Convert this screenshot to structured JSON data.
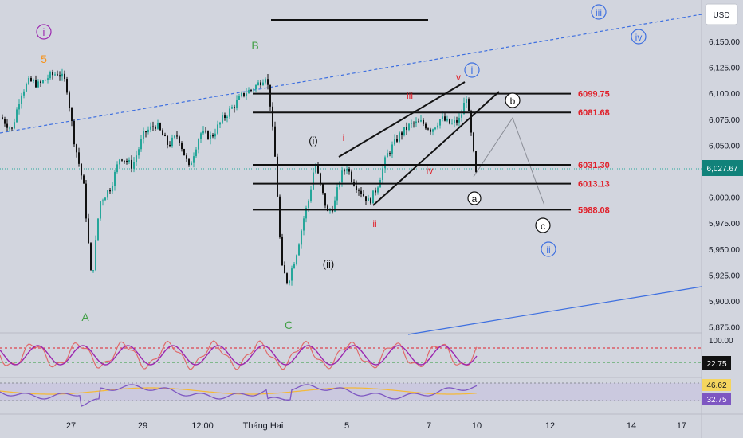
{
  "header": {
    "currency": "USD"
  },
  "price_axis": {
    "ticks": [
      "6,150.00",
      "6,125.00",
      "6,100.00",
      "6,075.00",
      "6,050.00",
      "6,025.00",
      "6,000.00",
      "5,975.00",
      "5,950.00",
      "5,925.00",
      "5,900.00",
      "5,875.00"
    ],
    "current_price": "6,027.67"
  },
  "time_axis": {
    "ticks": [
      "27",
      "29",
      "12:00",
      "Tháng Hai",
      "5",
      "7",
      "10",
      "12",
      "14",
      "17"
    ]
  },
  "levels": [
    {
      "label": "6099.75",
      "value": 6099.75
    },
    {
      "label": "6081.68",
      "value": 6081.68
    },
    {
      "label": "6031.30",
      "value": 6031.3
    },
    {
      "label": "6013.13",
      "value": 6013.13
    },
    {
      "label": "5988.08",
      "value": 5988.08
    }
  ],
  "wave_labels": {
    "i_circle_purple": "i",
    "five": "5",
    "B": "B",
    "A": "A",
    "C": "C",
    "iii_circle_blue": "iii",
    "iv_circle_blue": "iv",
    "i_circle_blue": "i",
    "ii_circle_blue": "ii",
    "i_paren": "(i)",
    "ii_paren": "(ii)",
    "red_i": "i",
    "red_ii": "ii",
    "red_iii": "iii",
    "red_iv": "iv",
    "red_v": "v",
    "a_circle": "a",
    "b_circle": "b",
    "c_circle": "c"
  },
  "indicators": {
    "stoch_axis": {
      "top": "100.00"
    },
    "stoch_value": "22.75",
    "rsi_value_1": "46.62",
    "rsi_value_2": "32.75"
  },
  "colors": {
    "background": "#d2d5de",
    "up_candle": "#26a69a",
    "down_candle": "#111111",
    "level_label": "#e0202a",
    "trend_blue": "#3d6fe0",
    "wave_green": "#43a047",
    "wave_purple": "#9c27b0",
    "wave_orange": "#f7931a",
    "current_price_bg": "#11827a",
    "stoch_line": "#9c27b0",
    "rsi_line": "#7e57c2",
    "rsi_ma": "#f5b935"
  },
  "chart_data": {
    "type": "candlestick",
    "symbol_currency": "USD",
    "price_range": [
      5860,
      6165
    ],
    "last_price": 6027.67,
    "key_points": [
      {
        "label": "5",
        "price": 6128
      },
      {
        "label": "A",
        "price": 5915
      },
      {
        "label": "B",
        "price": 6120
      },
      {
        "label": "C",
        "price": 5906
      },
      {
        "label": "(i)",
        "price": 6034
      },
      {
        "label": "(ii)",
        "price": 5962
      },
      {
        "label": "v",
        "price": 6098
      },
      {
        "label": "a",
        "price": 6020
      }
    ],
    "horizontal_levels": [
      6099.75,
      6081.68,
      6031.3,
      6013.13,
      5988.08
    ],
    "stochastic_last": 22.75,
    "rsi_last": [
      46.62,
      32.75
    ]
  }
}
